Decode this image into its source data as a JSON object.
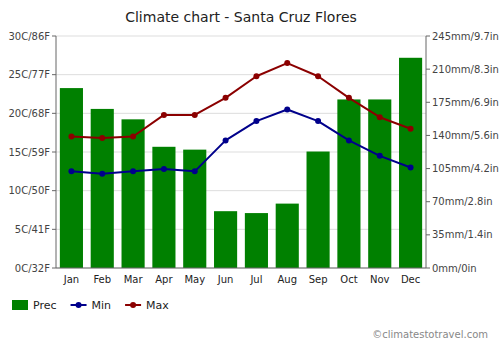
{
  "chart_data": {
    "type": "bar",
    "title": "Climate chart - Santa Cruz Flores",
    "categories": [
      "Jan",
      "Feb",
      "Mar",
      "Apr",
      "May",
      "Jun",
      "Jul",
      "Aug",
      "Sep",
      "Oct",
      "Nov",
      "Dec"
    ],
    "series": [
      {
        "name": "Prec",
        "type": "bar",
        "axis": "y2",
        "color": "#008000",
        "values": [
          190,
          168,
          157,
          128,
          125,
          60,
          58,
          68,
          123,
          178,
          178,
          222
        ]
      },
      {
        "name": "Min",
        "type": "line",
        "marker": "circle",
        "color": "#00008B",
        "values": [
          12.5,
          12.2,
          12.5,
          12.8,
          12.5,
          16.5,
          19.0,
          20.5,
          19.0,
          16.5,
          14.5,
          13.0
        ]
      },
      {
        "name": "Max",
        "type": "line",
        "marker": "circle",
        "color": "#8B0000",
        "values": [
          17.0,
          16.8,
          17.0,
          19.8,
          19.8,
          22.0,
          24.8,
          26.5,
          24.8,
          22.0,
          19.5,
          18.0
        ]
      }
    ],
    "ylim": [
      0,
      30
    ],
    "yticks": [
      {
        "value": 0,
        "label": "0C/32F"
      },
      {
        "value": 5,
        "label": "5C/41F"
      },
      {
        "value": 10,
        "label": "10C/50F"
      },
      {
        "value": 15,
        "label": "15C/59F"
      },
      {
        "value": 20,
        "label": "20C/68F"
      },
      {
        "value": 25,
        "label": "25C/77F"
      },
      {
        "value": 30,
        "label": "30C/86F"
      }
    ],
    "y2lim": [
      0,
      245
    ],
    "y2ticks": [
      {
        "value": 0,
        "label": "0mm/0in"
      },
      {
        "value": 35,
        "label": "35mm/1.4in"
      },
      {
        "value": 70,
        "label": "70mm/2.8in"
      },
      {
        "value": 105,
        "label": "105mm/4.2in"
      },
      {
        "value": 140,
        "label": "140mm/5.6in"
      },
      {
        "value": 175,
        "label": "175mm/6.9in"
      },
      {
        "value": 210,
        "label": "210mm/8.3in"
      },
      {
        "value": 245,
        "label": "245mm/9.7in"
      }
    ],
    "grid": true,
    "legend": "lower left",
    "annotations": [
      "©climatestotravel.com"
    ]
  }
}
